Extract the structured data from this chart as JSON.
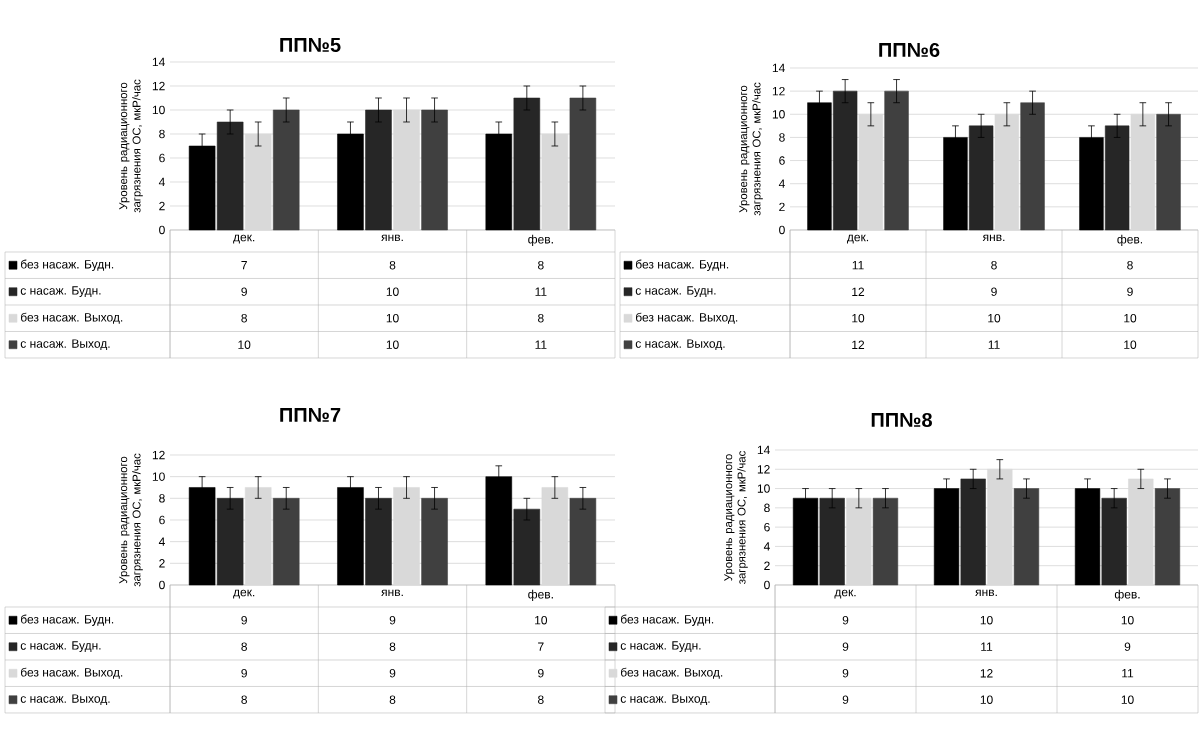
{
  "chart_data": [
    {
      "type": "bar",
      "title": "ПП№5",
      "ylabel": "Уровень радиационного загрязнения ОС, мкР/час",
      "categories": [
        "дек.",
        "янв.",
        "фев."
      ],
      "ylim": [
        0,
        14
      ],
      "yticks": [
        0,
        2,
        4,
        6,
        8,
        10,
        12,
        14
      ],
      "grid": "y",
      "legend": "bottom",
      "data_labels": true,
      "series": [
        {
          "name": "без насаж. Будн.",
          "color": "#000000",
          "values": [
            7,
            8,
            8
          ],
          "errors": [
            1,
            1,
            1
          ]
        },
        {
          "name": "с насаж. Будн.",
          "color": "#262626",
          "values": [
            9,
            10,
            11
          ],
          "errors": [
            1,
            1,
            1
          ]
        },
        {
          "name": "без насаж. Выход.",
          "color": "#d9d9d9",
          "values": [
            8,
            10,
            8
          ],
          "errors": [
            1,
            1,
            1
          ]
        },
        {
          "name": "с насаж. Выход.",
          "color": "#404040",
          "values": [
            10,
            10,
            11
          ],
          "errors": [
            1,
            1,
            1
          ]
        }
      ]
    },
    {
      "type": "bar",
      "title": "ПП№6",
      "ylabel": "Уровень радиационного загрязнения ОС, мкР/час",
      "categories": [
        "дек.",
        "янв.",
        "фев."
      ],
      "ylim": [
        0,
        14
      ],
      "yticks": [
        0,
        2,
        4,
        6,
        8,
        10,
        12,
        14
      ],
      "grid": "y",
      "legend": "bottom",
      "data_labels": true,
      "series": [
        {
          "name": "без насаж. Будн.",
          "color": "#000000",
          "values": [
            11,
            8,
            8
          ],
          "errors": [
            1,
            1,
            1
          ]
        },
        {
          "name": "с насаж. Будн.",
          "color": "#262626",
          "values": [
            12,
            9,
            9
          ],
          "errors": [
            1,
            1,
            1
          ]
        },
        {
          "name": "без насаж. Выход.",
          "color": "#d9d9d9",
          "values": [
            10,
            10,
            10
          ],
          "errors": [
            1,
            1,
            1
          ]
        },
        {
          "name": "с насаж. Выход.",
          "color": "#404040",
          "values": [
            12,
            11,
            10
          ],
          "errors": [
            1,
            1,
            1
          ]
        }
      ]
    },
    {
      "type": "bar",
      "title": "ПП№7",
      "ylabel": "Уровень радиационного загрязнения ОС, мкР/час",
      "categories": [
        "дек.",
        "янв.",
        "фев."
      ],
      "ylim": [
        0,
        12
      ],
      "yticks": [
        0,
        2,
        4,
        6,
        8,
        10,
        12
      ],
      "grid": "y",
      "legend": "bottom",
      "data_labels": true,
      "series": [
        {
          "name": "без насаж. Будн.",
          "color": "#000000",
          "values": [
            9,
            9,
            10
          ],
          "errors": [
            1,
            1,
            1
          ]
        },
        {
          "name": "с насаж. Будн.",
          "color": "#262626",
          "values": [
            8,
            8,
            7
          ],
          "errors": [
            1,
            1,
            1
          ]
        },
        {
          "name": "без насаж. Выход.",
          "color": "#d9d9d9",
          "values": [
            9,
            9,
            9
          ],
          "errors": [
            1,
            1,
            1
          ]
        },
        {
          "name": "с насаж. Выход.",
          "color": "#404040",
          "values": [
            8,
            8,
            8
          ],
          "errors": [
            1,
            1,
            1
          ]
        }
      ]
    },
    {
      "type": "bar",
      "title": "ПП№8",
      "ylabel": "Уровень радиационного загрязнения ОС, мкР/час",
      "categories": [
        "дек.",
        "янв.",
        "фев."
      ],
      "ylim": [
        0,
        14
      ],
      "yticks": [
        0,
        2,
        4,
        6,
        8,
        10,
        12,
        14
      ],
      "grid": "y",
      "legend": "bottom",
      "data_labels": true,
      "series": [
        {
          "name": "без насаж. Будн.",
          "color": "#000000",
          "values": [
            9,
            10,
            10
          ],
          "errors": [
            1,
            1,
            1
          ]
        },
        {
          "name": "с насаж. Будн.",
          "color": "#262626",
          "values": [
            9,
            11,
            9
          ],
          "errors": [
            1,
            1,
            1
          ]
        },
        {
          "name": "без насаж. Выход.",
          "color": "#d9d9d9",
          "values": [
            9,
            12,
            11
          ],
          "errors": [
            1,
            1,
            1
          ]
        },
        {
          "name": "с насаж. Выход.",
          "color": "#404040",
          "values": [
            9,
            10,
            10
          ],
          "errors": [
            1,
            1,
            1
          ]
        }
      ]
    }
  ]
}
